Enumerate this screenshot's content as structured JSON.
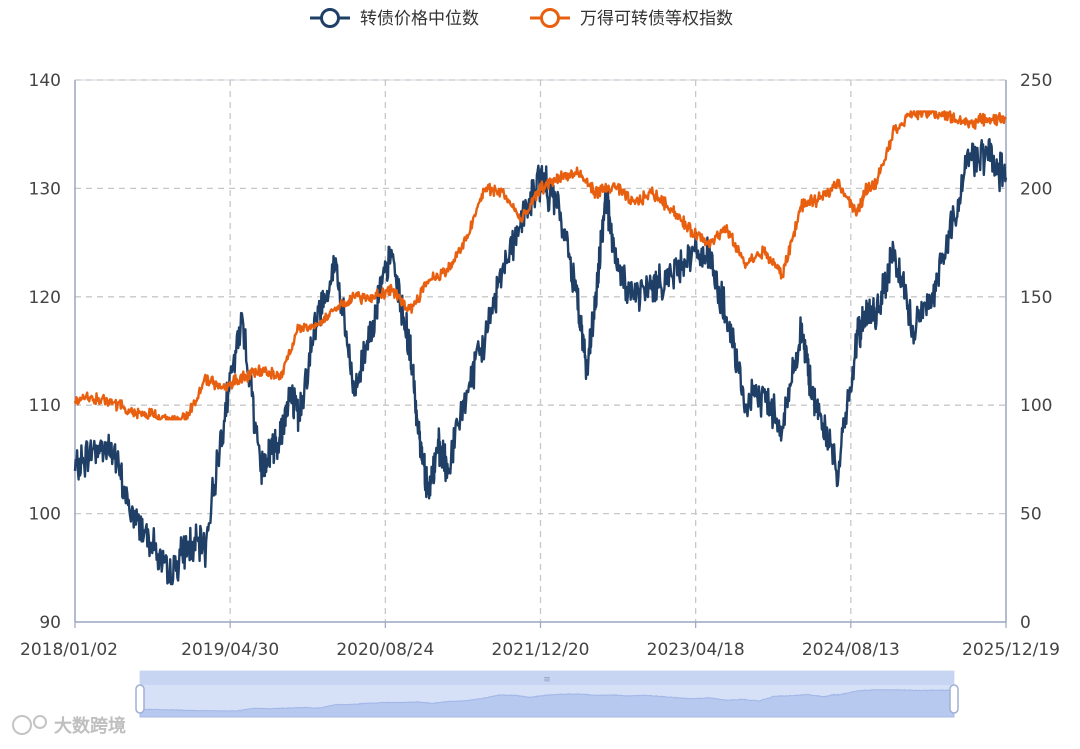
{
  "chart_data": {
    "type": "line",
    "legend_position": "top-center",
    "grid": true,
    "x_tick_labels": [
      "2018/01/02",
      "2019/04/30",
      "2020/08/24",
      "2021/12/20",
      "2023/04/18",
      "2024/08/13",
      "2025/12/19"
    ],
    "y_left": {
      "ticks": [
        90,
        100,
        110,
        120,
        130,
        140
      ],
      "range": [
        90,
        140
      ]
    },
    "y_right": {
      "ticks": [
        0,
        50,
        100,
        150,
        200,
        250
      ],
      "range": [
        0,
        250
      ]
    },
    "series": [
      {
        "name": "转债价格中位数",
        "axis": "left",
        "color": "#1f3f66",
        "x": [
          0,
          0.02,
          0.04,
          0.06,
          0.08,
          0.1,
          0.12,
          0.14,
          0.16,
          0.18,
          0.2,
          0.21,
          0.22,
          0.23,
          0.24,
          0.26,
          0.28,
          0.3,
          0.32,
          0.34,
          0.36,
          0.37,
          0.38,
          0.39,
          0.4,
          0.42,
          0.44,
          0.46,
          0.48,
          0.5,
          0.52,
          0.54,
          0.55,
          0.56,
          0.57,
          0.58,
          0.6,
          0.62,
          0.64,
          0.66,
          0.68,
          0.7,
          0.72,
          0.74,
          0.76,
          0.78,
          0.79,
          0.8,
          0.82,
          0.84,
          0.85,
          0.86,
          0.88,
          0.9,
          0.92,
          0.94,
          0.96,
          0.98,
          1
        ],
        "y": [
          104,
          106,
          106,
          100,
          98,
          94,
          97,
          97,
          109,
          118,
          104,
          106,
          107,
          111,
          109,
          118,
          123,
          111,
          118,
          124,
          115,
          107,
          102,
          106,
          104,
          111,
          116,
          123,
          127,
          131,
          128,
          120,
          113,
          120,
          130,
          123,
          120,
          121,
          122,
          124,
          124,
          118,
          110,
          111,
          108,
          117,
          112,
          109,
          104,
          116,
          119,
          118,
          124,
          117,
          120,
          126,
          133,
          133,
          131
        ],
        "y_range": [
          93.5,
          135.5
        ]
      },
      {
        "name": "万得可转债等权指数",
        "axis": "right",
        "color": "#e8600f",
        "x": [
          0,
          0.02,
          0.04,
          0.06,
          0.08,
          0.1,
          0.12,
          0.14,
          0.16,
          0.18,
          0.2,
          0.22,
          0.24,
          0.26,
          0.28,
          0.3,
          0.32,
          0.34,
          0.36,
          0.38,
          0.4,
          0.42,
          0.44,
          0.46,
          0.48,
          0.5,
          0.52,
          0.54,
          0.56,
          0.58,
          0.6,
          0.62,
          0.64,
          0.66,
          0.68,
          0.7,
          0.72,
          0.74,
          0.76,
          0.78,
          0.8,
          0.82,
          0.84,
          0.85,
          0.86,
          0.88,
          0.9,
          0.92,
          0.94,
          0.96,
          0.98,
          1
        ],
        "y": [
          102,
          103,
          101,
          97,
          96,
          93,
          94,
          112,
          108,
          113,
          116,
          113,
          135,
          137,
          145,
          150,
          150,
          153,
          144,
          158,
          162,
          176,
          200,
          198,
          185,
          200,
          205,
          207,
          198,
          201,
          193,
          198,
          191,
          181,
          175,
          181,
          165,
          171,
          160,
          192,
          195,
          203,
          188,
          200,
          202,
          227,
          235,
          235,
          233,
          230,
          232,
          232
        ],
        "y_range": [
          93.5,
          235.5
        ]
      }
    ]
  },
  "data_zoom": {
    "range_start": 0,
    "range_end": 100,
    "handle_label": "≡"
  },
  "watermark": {
    "text": "大数跨境"
  }
}
